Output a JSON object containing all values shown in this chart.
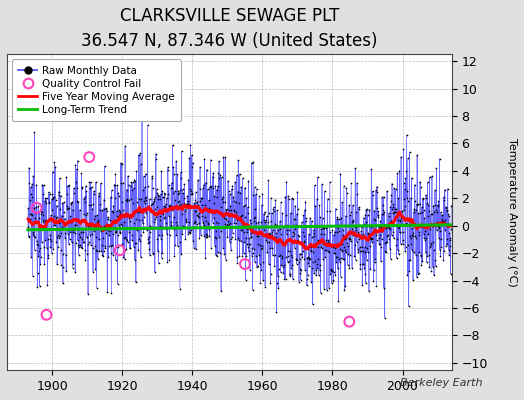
{
  "title": "CLARKSVILLE SEWAGE PLT",
  "subtitle": "36.547 N, 87.346 W (United States)",
  "ylabel": "Temperature Anomaly (°C)",
  "ylim": [
    -10.5,
    12.5
  ],
  "yticks": [
    -10,
    -8,
    -6,
    -4,
    -2,
    0,
    2,
    4,
    6,
    8,
    10,
    12
  ],
  "xlim": [
    1887,
    2014
  ],
  "xticks": [
    1900,
    1920,
    1940,
    1960,
    1980,
    2000
  ],
  "fig_bg_color": "#e0e0e0",
  "plot_bg_color": "#ffffff",
  "title_fontsize": 12,
  "subtitle_fontsize": 9,
  "tick_fontsize": 9,
  "raw_line_color": "#5555ff",
  "raw_dot_color": "#000000",
  "ma_color": "#ff0000",
  "trend_color": "#00bb00",
  "qc_color": "#ff44bb",
  "legend_labels": [
    "Raw Monthly Data",
    "Quality Control Fail",
    "Five Year Moving Average",
    "Long-Term Trend"
  ],
  "watermark": "Berkeley Earth",
  "years_start": 1893,
  "years_end": 2013,
  "seed": 12345
}
